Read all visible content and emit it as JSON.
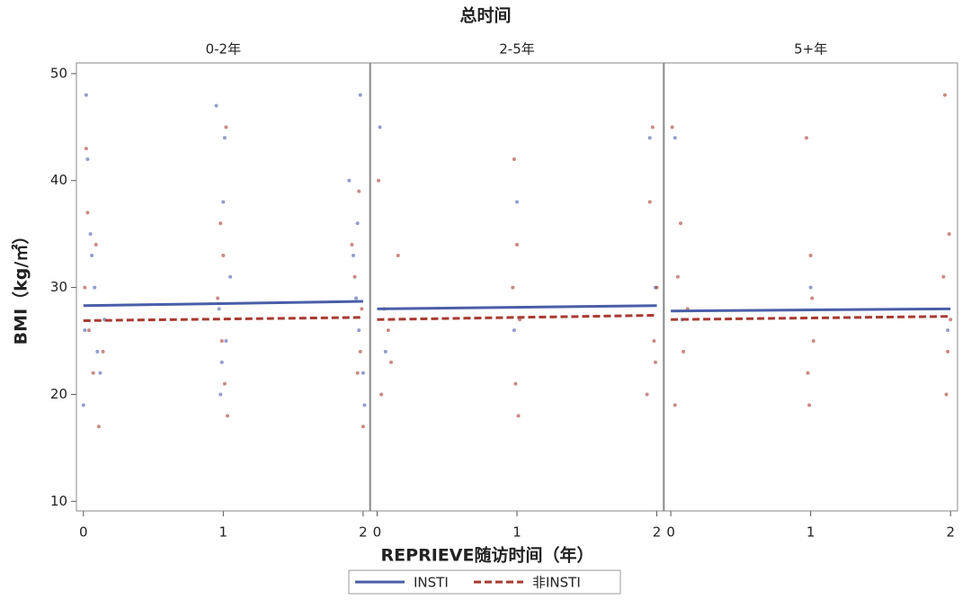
{
  "chart_data": {
    "type": "scatter",
    "title": "总时间",
    "xlabel": "REPRIEVE随访时间（年）",
    "ylabel": "BMI（kg/㎡）",
    "ylim": [
      9.1,
      51
    ],
    "yticks": [
      10,
      20,
      30,
      40,
      50
    ],
    "panels": [
      {
        "title": "0-2年",
        "xlim": [
          -0.05,
          2.05
        ],
        "xticks": [
          0,
          1,
          2
        ]
      },
      {
        "title": "2-5年",
        "xlim": [
          -0.05,
          2.05
        ],
        "xticks": [
          0,
          1,
          2
        ]
      },
      {
        "title": "5+年",
        "xlim": [
          -0.05,
          2.05
        ],
        "xticks": [
          0,
          1,
          2
        ]
      }
    ],
    "series": [
      {
        "name": "INSTI",
        "color": "#4a5ea8",
        "line_style": "solid",
        "panels": [
          {
            "x": [
              0.02,
              0.05,
              0.1,
              0.0,
              0.08,
              0.15,
              0.03,
              0.12,
              0.06,
              0.01,
              0.95,
              1.0,
              1.02,
              0.98,
              1.05,
              0.97,
              1.01,
              0.99,
              1.9,
              1.95,
              2.0,
              1.98,
              1.93,
              1.97,
              2.01,
              1.96
            ],
            "values": [
              48,
              35,
              24,
              19,
              30,
              27,
              42,
              22,
              33,
              26,
              47,
              38,
              25,
              20,
              31,
              28,
              44,
              23,
              40,
              29,
              22,
              48,
              33,
              26,
              19,
              36
            ],
            "fit": {
              "x": [
                0,
                2
              ],
              "values": [
                28.3,
                28.7
              ]
            }
          },
          {
            "x": [
              0.02,
              0.06,
              1.0,
              0.98,
              1.95,
              1.99
            ],
            "values": [
              45,
              24,
              38,
              26,
              44,
              30
            ],
            "fit": {
              "x": [
                0,
                2
              ],
              "values": [
                28.0,
                28.3
              ]
            }
          },
          {
            "x": [
              0.03,
              0.08,
              1.0,
              1.98
            ],
            "values": [
              44,
              27,
              30,
              26
            ],
            "fit": {
              "x": [
                0,
                2
              ],
              "values": [
                27.8,
                28.0
              ]
            }
          }
        ]
      },
      {
        "name": "非INSTI",
        "color": "#a83a32",
        "line_style": "dashed",
        "panels": [
          {
            "x": [
              0.03,
              0.07,
              0.01,
              0.11,
              0.04,
              0.09,
              0.02,
              0.14,
              0.98,
              1.01,
              0.96,
              1.03,
              1.0,
              0.99,
              1.02,
              1.92,
              1.96,
              1.99,
              2.0,
              1.94,
              1.98,
              1.97
            ],
            "values": [
              37,
              22,
              30,
              17,
              26,
              34,
              43,
              24,
              36,
              21,
              29,
              18,
              33,
              25,
              45,
              34,
              22,
              28,
              17,
              31,
              24,
              39
            ],
            "fit": {
              "x": [
                0,
                2
              ],
              "values": [
                26.9,
                27.2
              ]
            }
          },
          {
            "x": [
              0.01,
              0.05,
              0.1,
              0.03,
              0.15,
              0.08,
              0.98,
              1.0,
              1.02,
              0.99,
              1.01,
              0.97,
              1.95,
              1.98,
              2.0,
              1.93,
              1.97,
              1.99
            ],
            "values": [
              40,
              28,
              23,
              20,
              33,
              26,
              42,
              34,
              27,
              21,
              18,
              30,
              38,
              25,
              30,
              20,
              45,
              23
            ],
            "fit": {
              "x": [
                0,
                2
              ],
              "values": [
                27.0,
                27.4
              ]
            }
          },
          {
            "x": [
              0.01,
              0.05,
              0.09,
              0.03,
              0.12,
              0.07,
              0.97,
              1.0,
              1.02,
              0.99,
              1.01,
              0.98,
              1.96,
              1.99,
              2.0,
              1.97,
              1.98,
              1.95
            ],
            "values": [
              45,
              31,
              24,
              19,
              28,
              36,
              44,
              33,
              25,
              19,
              29,
              22,
              48,
              35,
              27,
              20,
              24,
              31
            ],
            "fit": {
              "x": [
                0,
                2
              ],
              "values": [
                27.0,
                27.3
              ]
            }
          }
        ]
      }
    ]
  }
}
